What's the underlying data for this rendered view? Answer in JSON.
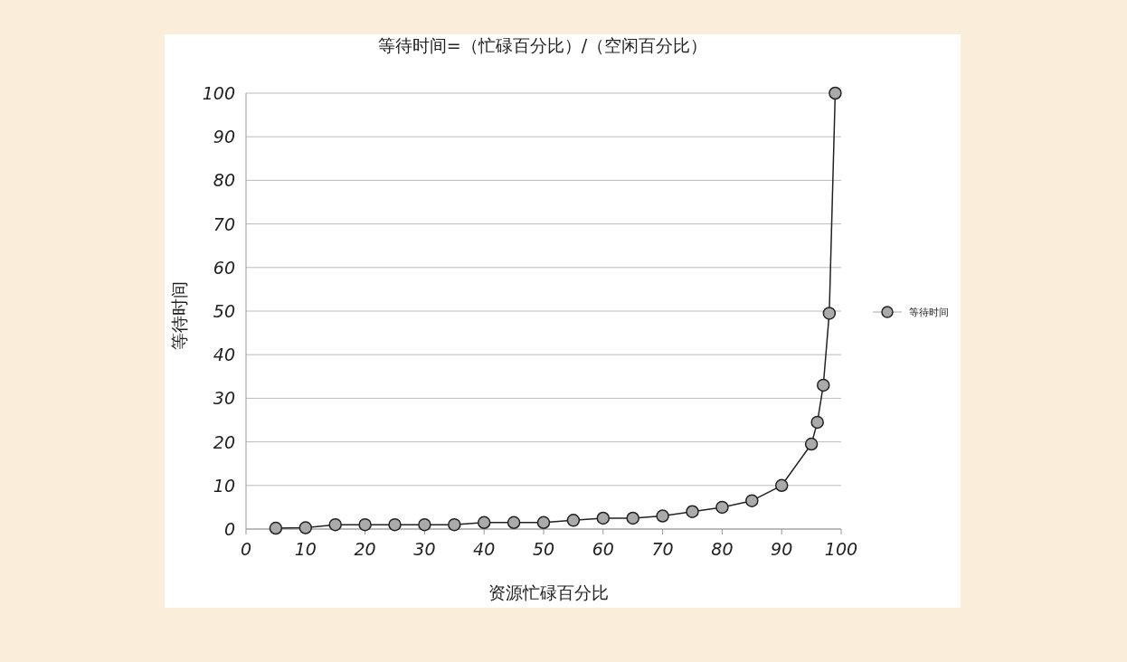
{
  "chart_data": {
    "type": "line",
    "title": "等待时间=（忙碌百分比）/（空闲百分比）",
    "xlabel": "资源忙碌百分比",
    "ylabel": "等待时间",
    "x": [
      5,
      10,
      15,
      20,
      25,
      30,
      35,
      40,
      45,
      50,
      55,
      60,
      65,
      70,
      75,
      80,
      85,
      90,
      95,
      96,
      97,
      98,
      99
    ],
    "series": [
      {
        "name": "等待时间",
        "color": "#aaaaaa",
        "values": [
          0.2,
          0.3,
          1,
          1,
          1,
          1,
          1,
          1.5,
          1.5,
          1.5,
          2,
          2.5,
          2.5,
          3,
          4,
          5,
          6.5,
          10,
          19.5,
          24.5,
          33,
          49.5,
          100
        ]
      }
    ],
    "xlim": [
      0,
      100
    ],
    "ylim": [
      0,
      100
    ],
    "xticks": [
      0,
      10,
      20,
      30,
      40,
      50,
      60,
      70,
      80,
      90,
      100
    ],
    "yticks": [
      0,
      10,
      20,
      30,
      40,
      50,
      60,
      70,
      80,
      90,
      100
    ],
    "grid": "y",
    "legend": "right",
    "marker": "circle",
    "line_style": "solid"
  }
}
